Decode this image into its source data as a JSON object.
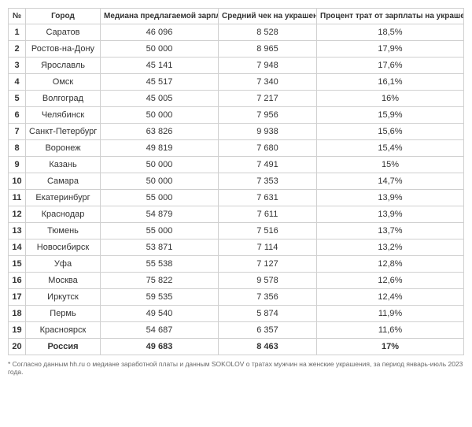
{
  "table": {
    "headers": {
      "num": "№",
      "city": "Город",
      "salary": "Медиана предлагаемой зарплаты",
      "check": "Средний чек на украшения",
      "percent": "Процент трат от зарплаты на украшения"
    },
    "rows": [
      {
        "n": "1",
        "city": "Саратов",
        "salary": "46 096",
        "check": "8 528",
        "percent": "18,5%",
        "bold": false
      },
      {
        "n": "2",
        "city": "Ростов-на-Дону",
        "salary": "50 000",
        "check": "8 965",
        "percent": "17,9%",
        "bold": false
      },
      {
        "n": "3",
        "city": "Ярославль",
        "salary": "45 141",
        "check": "7 948",
        "percent": "17,6%",
        "bold": false
      },
      {
        "n": "4",
        "city": "Омск",
        "salary": "45 517",
        "check": "7 340",
        "percent": "16,1%",
        "bold": false
      },
      {
        "n": "5",
        "city": "Волгоград",
        "salary": "45 005",
        "check": "7 217",
        "percent": "16%",
        "bold": false
      },
      {
        "n": "6",
        "city": "Челябинск",
        "salary": "50 000",
        "check": "7 956",
        "percent": "15,9%",
        "bold": false
      },
      {
        "n": "7",
        "city": "Санкт-Петербург",
        "salary": "63 826",
        "check": "9 938",
        "percent": "15,6%",
        "bold": false
      },
      {
        "n": "8",
        "city": "Воронеж",
        "salary": "49 819",
        "check": "7 680",
        "percent": "15,4%",
        "bold": false
      },
      {
        "n": "9",
        "city": "Казань",
        "salary": "50 000",
        "check": "7 491",
        "percent": "15%",
        "bold": false
      },
      {
        "n": "10",
        "city": "Самара",
        "salary": "50 000",
        "check": "7 353",
        "percent": "14,7%",
        "bold": false
      },
      {
        "n": "11",
        "city": "Екатеринбург",
        "salary": "55 000",
        "check": "7 631",
        "percent": "13,9%",
        "bold": false
      },
      {
        "n": "12",
        "city": "Краснодар",
        "salary": "54 879",
        "check": "7 611",
        "percent": "13,9%",
        "bold": false
      },
      {
        "n": "13",
        "city": "Тюмень",
        "salary": "55 000",
        "check": "7 516",
        "percent": "13,7%",
        "bold": false
      },
      {
        "n": "14",
        "city": "Новосибирск",
        "salary": "53 871",
        "check": "7 114",
        "percent": "13,2%",
        "bold": false
      },
      {
        "n": "15",
        "city": "Уфа",
        "salary": "55 538",
        "check": "7 127",
        "percent": "12,8%",
        "bold": false
      },
      {
        "n": "16",
        "city": "Москва",
        "salary": "75 822",
        "check": "9 578",
        "percent": "12,6%",
        "bold": false
      },
      {
        "n": "17",
        "city": "Иркутск",
        "salary": "59 535",
        "check": "7 356",
        "percent": "12,4%",
        "bold": false
      },
      {
        "n": "18",
        "city": "Пермь",
        "salary": "49 540",
        "check": "5 874",
        "percent": "11,9%",
        "bold": false
      },
      {
        "n": "19",
        "city": "Красноярск",
        "salary": "54 687",
        "check": "6 357",
        "percent": "11,6%",
        "bold": false
      },
      {
        "n": "20",
        "city": "Россия",
        "salary": "49 683",
        "check": "8 463",
        "percent": "17%",
        "bold": true
      }
    ]
  },
  "footnote": "* Согласно данным hh.ru о медиане заработной платы и данным SOKOLOV о тратах мужчин на женские украшения, за период январь-июль 2023 года.",
  "style": {
    "border_color": "#d0d0d0",
    "text_color": "#333333",
    "footnote_color": "#666666",
    "background": "#ffffff",
    "font_size_body": 11,
    "font_size_header": 10,
    "font_size_footnote": 8.5
  }
}
